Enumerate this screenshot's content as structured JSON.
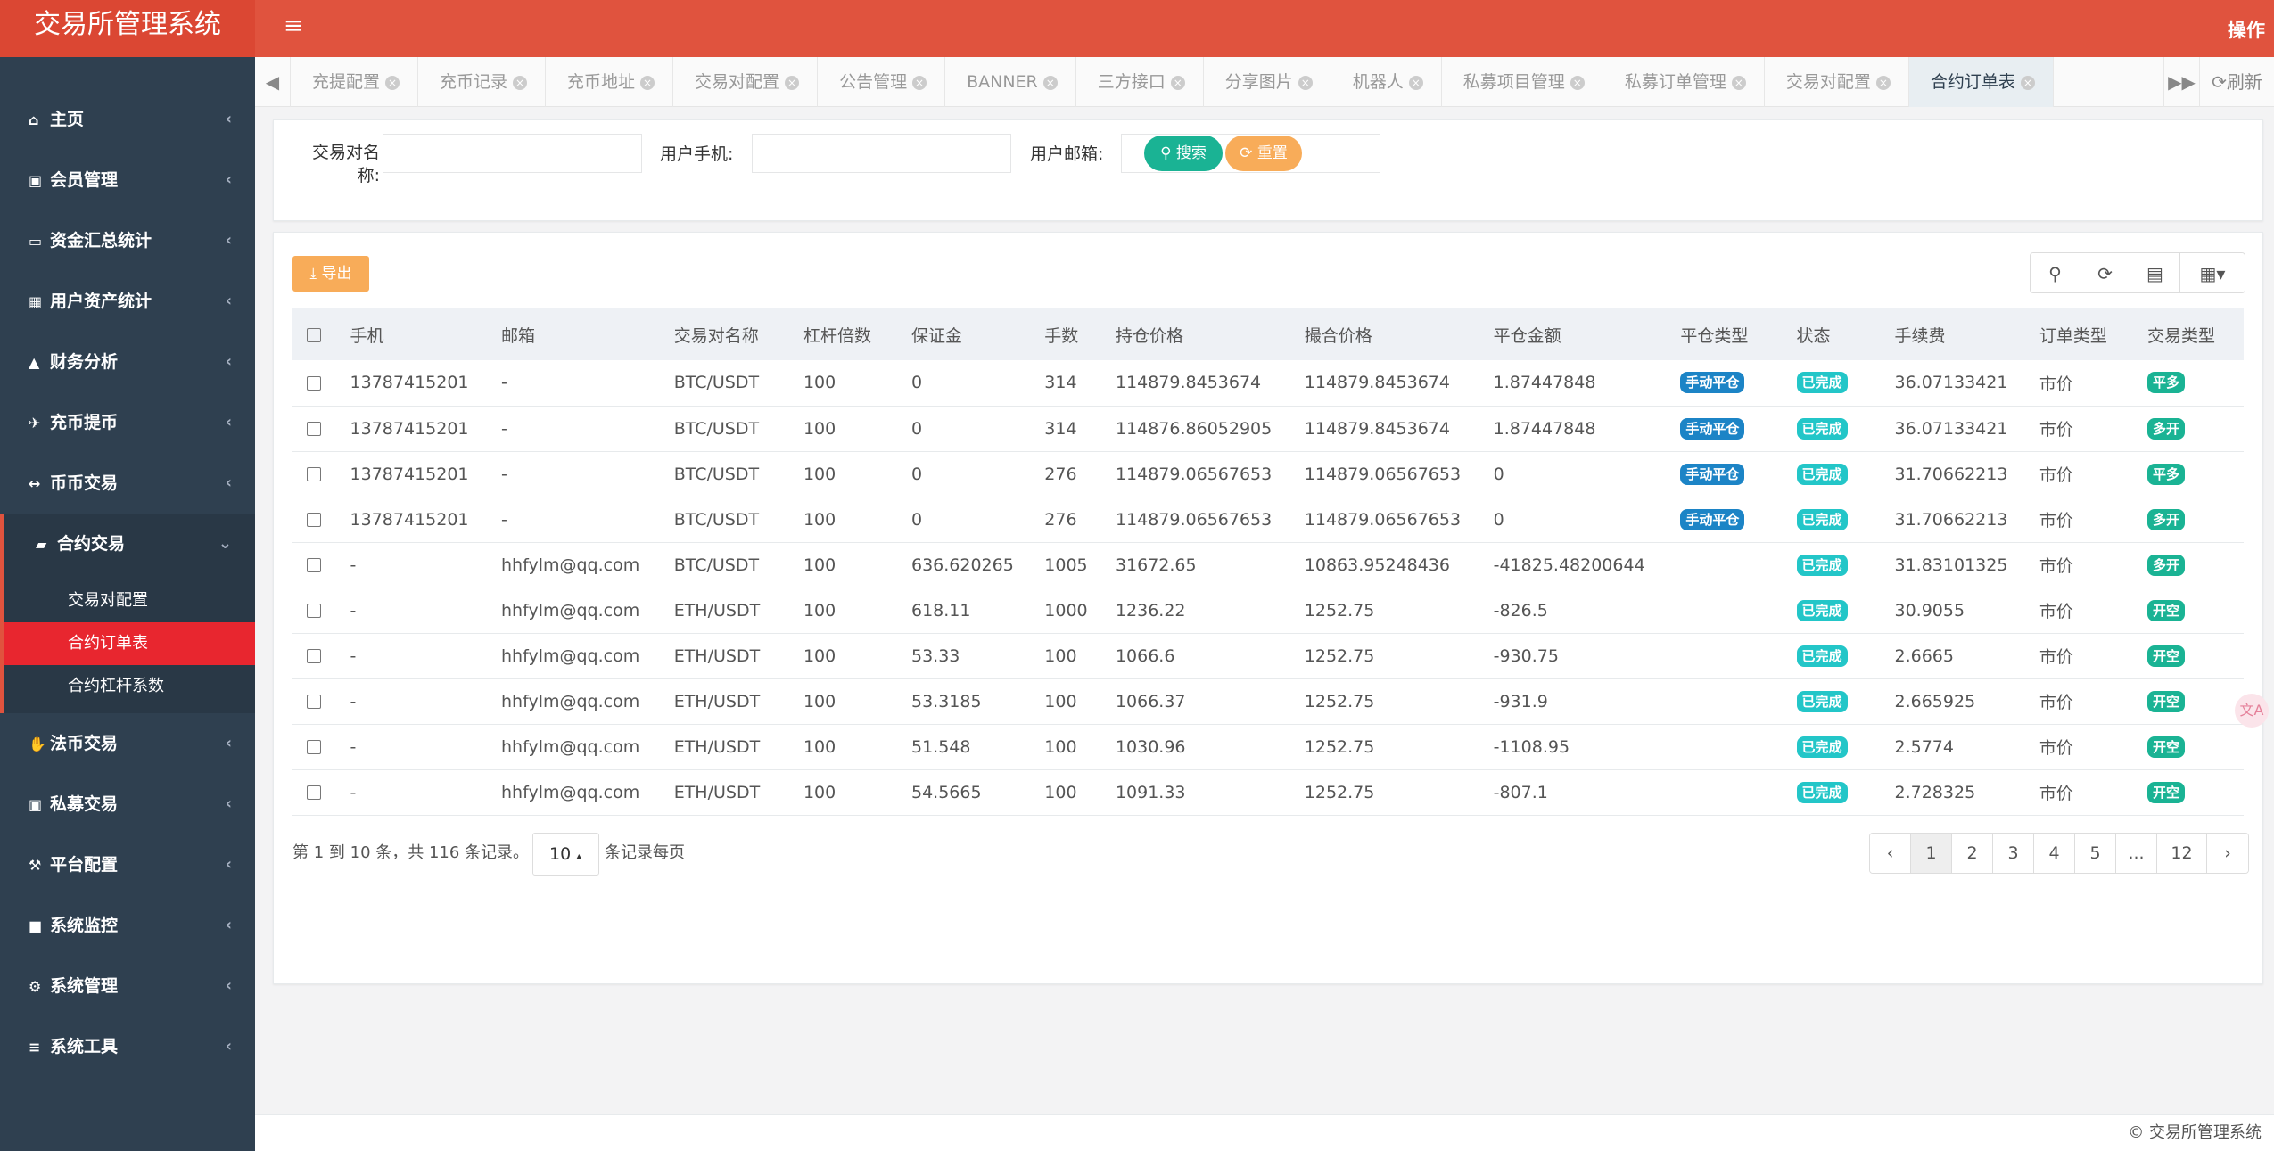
{
  "app": {
    "title": "交易所管理系统",
    "operation_label": "操作",
    "copyright": "© 交易所管理系统"
  },
  "sidebar": {
    "items": [
      {
        "label": "主页",
        "icon": "home-icon"
      },
      {
        "label": "会员管理",
        "icon": "user-icon"
      },
      {
        "label": "资金汇总统计",
        "icon": "card-icon"
      },
      {
        "label": "用户资产统计",
        "icon": "grid-icon"
      },
      {
        "label": "财务分析",
        "icon": "chart-icon"
      },
      {
        "label": "充币提币",
        "icon": "plane-icon"
      },
      {
        "label": "币币交易",
        "icon": "arrows-icon"
      },
      {
        "label": "合约交易",
        "icon": "book-icon"
      },
      {
        "label": "法币交易",
        "icon": "handshake-icon"
      },
      {
        "label": "私募交易",
        "icon": "user-icon"
      },
      {
        "label": "平台配置",
        "icon": "wrench-icon"
      },
      {
        "label": "系统监控",
        "icon": "video-icon"
      },
      {
        "label": "系统管理",
        "icon": "gear-icon"
      },
      {
        "label": "系统工具",
        "icon": "bars-icon"
      }
    ],
    "subitems": [
      "交易对配置",
      "合约订单表",
      "合约杠杆系数"
    ]
  },
  "tabs": [
    "充提配置",
    "充币记录",
    "充币地址",
    "交易对配置",
    "公告管理",
    "BANNER",
    "三方接口",
    "分享图片",
    "机器人",
    "私募项目管理",
    "私募订单管理",
    "交易对配置",
    "合约订单表"
  ],
  "refresh_label": "刷新",
  "search": {
    "pair_label": "交易对名称:",
    "phone_label": "用户手机:",
    "email_label": "用户邮箱:",
    "search_button": "搜索",
    "reset_button": "重置"
  },
  "export_button": "导出",
  "table": {
    "columns": [
      "手机",
      "邮箱",
      "交易对名称",
      "杠杆倍数",
      "保证金",
      "手数",
      "持仓价格",
      "撮合价格",
      "平仓金额",
      "平仓类型",
      "状态",
      "手续费",
      "订单类型",
      "交易类型"
    ],
    "rows": [
      [
        "13787415201",
        "-",
        "BTC/USDT",
        "100",
        "0",
        "314",
        "114879.8453674",
        "114879.8453674",
        "1.87447848",
        "手动平仓",
        "已完成",
        "36.07133421",
        "市价",
        "平多"
      ],
      [
        "13787415201",
        "-",
        "BTC/USDT",
        "100",
        "0",
        "314",
        "114876.86052905",
        "114879.8453674",
        "1.87447848",
        "手动平仓",
        "已完成",
        "36.07133421",
        "市价",
        "多开"
      ],
      [
        "13787415201",
        "-",
        "BTC/USDT",
        "100",
        "0",
        "276",
        "114879.06567653",
        "114879.06567653",
        "0",
        "手动平仓",
        "已完成",
        "31.70662213",
        "市价",
        "平多"
      ],
      [
        "13787415201",
        "-",
        "BTC/USDT",
        "100",
        "0",
        "276",
        "114879.06567653",
        "114879.06567653",
        "0",
        "手动平仓",
        "已完成",
        "31.70662213",
        "市价",
        "多开"
      ],
      [
        "-",
        "hhfylm@qq.com",
        "BTC/USDT",
        "100",
        "636.620265",
        "1005",
        "31672.65",
        "10863.95248436",
        "-41825.48200644",
        "",
        "已完成",
        "31.83101325",
        "市价",
        "多开"
      ],
      [
        "-",
        "hhfylm@qq.com",
        "ETH/USDT",
        "100",
        "618.11",
        "1000",
        "1236.22",
        "1252.75",
        "-826.5",
        "",
        "已完成",
        "30.9055",
        "市价",
        "开空"
      ],
      [
        "-",
        "hhfylm@qq.com",
        "ETH/USDT",
        "100",
        "53.33",
        "100",
        "1066.6",
        "1252.75",
        "-930.75",
        "",
        "已完成",
        "2.6665",
        "市价",
        "开空"
      ],
      [
        "-",
        "hhfylm@qq.com",
        "ETH/USDT",
        "100",
        "53.3185",
        "100",
        "1066.37",
        "1252.75",
        "-931.9",
        "",
        "已完成",
        "2.665925",
        "市价",
        "开空"
      ],
      [
        "-",
        "hhfylm@qq.com",
        "ETH/USDT",
        "100",
        "51.548",
        "100",
        "1030.96",
        "1252.75",
        "-1108.95",
        "",
        "已完成",
        "2.5774",
        "市价",
        "开空"
      ],
      [
        "-",
        "hhfylm@qq.com",
        "ETH/USDT",
        "100",
        "54.5665",
        "100",
        "1091.33",
        "1252.75",
        "-807.1",
        "",
        "已完成",
        "2.728325",
        "市价",
        "开空"
      ]
    ]
  },
  "pagination": {
    "info": "第 1 到 10 条，共 116 条记录。",
    "page_size": "10",
    "suffix": "条记录每页",
    "pages": [
      "‹",
      "1",
      "2",
      "3",
      "4",
      "5",
      "...",
      "12",
      "›"
    ]
  },
  "colors": {
    "header": "#e0533e",
    "sidebar": "#2f4050",
    "active_menu": "#e8262f",
    "primary": "#1ab394",
    "warning": "#f8ac59",
    "info": "#23c6c8",
    "success_blue": "#1c84c6"
  }
}
